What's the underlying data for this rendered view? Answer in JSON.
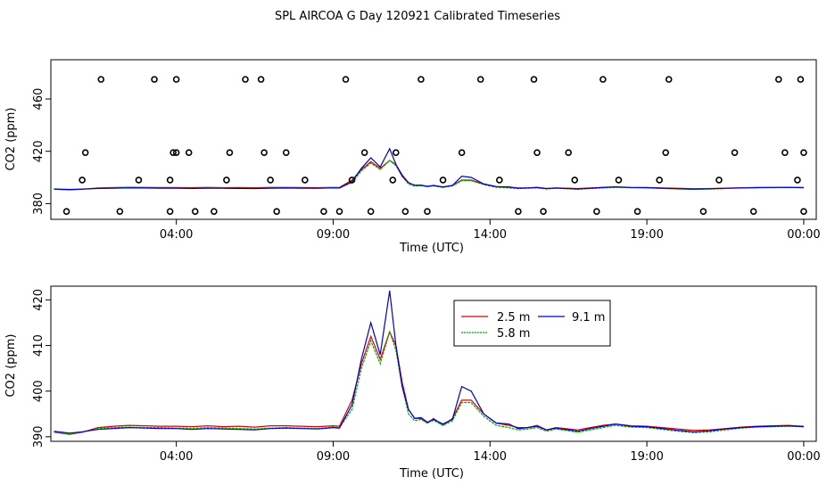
{
  "title": "SPL AIRCOA G  Day 120921  Calibrated Timeseries",
  "colors": {
    "s25": "#dd0000",
    "s58": "#00aa00",
    "s91": "#0000cc",
    "points": "#000000"
  },
  "chart_data": [
    {
      "type": "line+scatter",
      "xlabel": "Time (UTC)",
      "ylabel": "CO2 (ppm)",
      "xlim": [
        -4,
        20.4
      ],
      "ylim": [
        368,
        490
      ],
      "x_ticks": [
        0,
        5,
        10,
        15,
        20
      ],
      "x_tick_labels": [
        "04:00",
        "09:00",
        "14:00",
        "19:00",
        "00:00"
      ],
      "y_ticks": [
        380,
        420,
        460
      ],
      "y_tick_labels": [
        "380",
        "420",
        "460"
      ],
      "series": [
        {
          "name": "2.5 m",
          "color_key": "s25",
          "x": [
            -3.9,
            -3.4,
            -3,
            -2.5,
            -2,
            -1.5,
            -1,
            -0.5,
            0,
            0.5,
            1,
            1.5,
            2,
            2.5,
            3,
            3.5,
            4,
            4.5,
            5,
            5.2,
            5.6,
            5.9,
            6.2,
            6.5,
            6.8,
            7,
            7.2,
            7.4,
            7.6,
            7.8,
            8,
            8.2,
            8.5,
            8.8,
            9.1,
            9.4,
            9.8,
            10.2,
            10.6,
            10.9,
            11.2,
            11.5,
            11.8,
            12.1,
            12.4,
            12.8,
            13.2,
            13.6,
            14,
            14.5,
            15,
            15.5,
            16,
            16.5,
            17,
            17.5,
            18,
            18.5,
            19,
            19.5,
            20
          ],
          "y": [
            391,
            390.5,
            391,
            392,
            392.3,
            392.5,
            392.4,
            392.3,
            392.3,
            392.2,
            392.4,
            392.2,
            392.3,
            392.1,
            392.4,
            392.4,
            392.3,
            392.2,
            392.4,
            392.3,
            398,
            406,
            412,
            407,
            413,
            410,
            402,
            396,
            394,
            394,
            393,
            394,
            392.5,
            394,
            398,
            398,
            395,
            393,
            392.5,
            392,
            392,
            392.5,
            391.5,
            392,
            391.8,
            391.5,
            392,
            392.5,
            392.8,
            392.4,
            392.3,
            392,
            391.7,
            391.4,
            391.5,
            391.8,
            392.1,
            392.3,
            392.4,
            392.5,
            392.3
          ]
        },
        {
          "name": "5.8 m",
          "color_key": "s58",
          "x": [
            -3.9,
            -3.4,
            -3,
            -2.5,
            -2,
            -1.5,
            -1,
            -0.5,
            0,
            0.5,
            1,
            1.5,
            2,
            2.5,
            3,
            3.5,
            4,
            4.5,
            5,
            5.2,
            5.6,
            5.9,
            6.2,
            6.5,
            6.8,
            7,
            7.2,
            7.4,
            7.6,
            7.8,
            8,
            8.2,
            8.5,
            8.8,
            9.1,
            9.4,
            9.8,
            10.2,
            10.6,
            10.9,
            11.2,
            11.5,
            11.8,
            12.1,
            12.4,
            12.8,
            13.2,
            13.6,
            14,
            14.5,
            15,
            15.5,
            16,
            16.5,
            17,
            17.5,
            18,
            18.5,
            19,
            19.5,
            20
          ],
          "y": [
            391,
            390.6,
            391,
            391.8,
            392,
            392.1,
            392,
            392,
            391.9,
            391.8,
            392,
            391.9,
            391.8,
            391.7,
            391.9,
            392,
            391.9,
            391.8,
            392.1,
            392,
            396,
            405,
            411,
            406,
            413,
            409,
            401,
            395,
            393.5,
            393.8,
            393,
            393.6,
            392.5,
            393.5,
            397.5,
            397.5,
            394.5,
            392.5,
            392,
            391.5,
            391.7,
            392,
            391.2,
            391.7,
            391.4,
            391,
            391.5,
            392,
            392.5,
            392.1,
            392,
            391.6,
            391.2,
            390.9,
            391.1,
            391.5,
            391.9,
            392.1,
            392.2,
            392.3,
            392.2
          ]
        },
        {
          "name": "9.1 m",
          "color_key": "s91",
          "x": [
            -3.9,
            -3.4,
            -3,
            -2.5,
            -2,
            -1.5,
            -1,
            -0.5,
            0,
            0.5,
            1,
            1.5,
            2,
            2.5,
            3,
            3.5,
            4,
            4.5,
            5,
            5.2,
            5.6,
            5.9,
            6.2,
            6.5,
            6.8,
            7,
            7.2,
            7.4,
            7.6,
            7.8,
            8,
            8.2,
            8.5,
            8.8,
            9.1,
            9.4,
            9.8,
            10.2,
            10.6,
            10.9,
            11.2,
            11.5,
            11.8,
            12.1,
            12.4,
            12.8,
            13.2,
            13.6,
            14,
            14.5,
            15,
            15.5,
            16,
            16.5,
            17,
            17.5,
            18,
            18.5,
            19,
            19.5,
            20
          ],
          "y": [
            391.2,
            390.8,
            391.1,
            391.6,
            391.8,
            392,
            391.9,
            391.8,
            391.8,
            391.6,
            391.8,
            391.7,
            391.6,
            391.5,
            391.8,
            391.9,
            391.8,
            391.7,
            392,
            391.9,
            397,
            407,
            415,
            408,
            422,
            410,
            401,
            396,
            394,
            394.2,
            393.2,
            393.8,
            392.8,
            393.8,
            401,
            400,
            395,
            393,
            392.8,
            391.8,
            392,
            392.3,
            391.5,
            391.9,
            391.6,
            391.2,
            391.8,
            392.3,
            392.8,
            392.3,
            392.2,
            391.8,
            391.4,
            391.1,
            391.3,
            391.7,
            392,
            392.2,
            392.3,
            392.4,
            392.2
          ]
        }
      ],
      "points": {
        "name": "discrete samples",
        "x": [
          -3.5,
          -3.0,
          -2.9,
          -2.4,
          -1.8,
          -1.2,
          -0.7,
          -0.2,
          -0.2,
          -0.1,
          0,
          0,
          0.4,
          0.6,
          1.2,
          1.6,
          1.7,
          2.2,
          2.7,
          2.8,
          3,
          3.2,
          3.5,
          4.1,
          4.7,
          5.2,
          5.4,
          5.6,
          6,
          6.2,
          6.9,
          7.0,
          7.3,
          7.8,
          8.0,
          8.5,
          9.1,
          9.7,
          10.3,
          10.9,
          11.4,
          11.5,
          11.7,
          12.5,
          12.7,
          13.4,
          13.6,
          14.1,
          14.7,
          15.4,
          15.6,
          15.7,
          16.8,
          17.3,
          17.8,
          18.4,
          19.2,
          19.4,
          19.8,
          19.9,
          20.0,
          20.0
        ],
        "y": [
          374,
          398,
          419,
          475,
          374,
          398,
          475,
          374,
          398,
          419,
          419,
          475,
          419,
          374,
          374,
          398,
          419,
          475,
          475,
          419,
          398,
          374,
          419,
          398,
          374,
          374,
          475,
          398,
          419,
          374,
          398,
          419,
          374,
          475,
          374,
          398,
          419,
          475,
          398,
          374,
          475,
          419,
          374,
          419,
          398,
          374,
          475,
          398,
          374,
          398,
          419,
          475,
          374,
          398,
          419,
          374,
          475,
          419,
          398,
          475,
          374,
          419
        ]
      }
    },
    {
      "type": "line",
      "xlabel": "Time (UTC)",
      "ylabel": "CO2 (ppm)",
      "xlim": [
        -4,
        20.4
      ],
      "ylim": [
        389,
        423
      ],
      "x_ticks": [
        0,
        5,
        10,
        15,
        20
      ],
      "x_tick_labels": [
        "04:00",
        "09:00",
        "14:00",
        "19:00",
        "00:00"
      ],
      "y_ticks": [
        390,
        400,
        410,
        420
      ],
      "y_tick_labels": [
        "390",
        "400",
        "410",
        "420"
      ],
      "legend": [
        {
          "label": "2.5 m",
          "color_key": "s25"
        },
        {
          "label": "5.8 m",
          "color_key": "s58"
        },
        {
          "label": "9.1 m",
          "color_key": "s91"
        }
      ]
    }
  ]
}
